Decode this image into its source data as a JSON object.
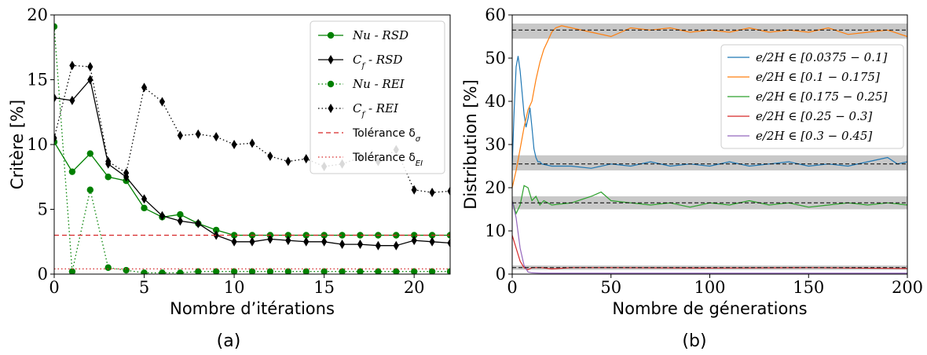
{
  "chart_data": [
    {
      "id": "a",
      "type": "line",
      "caption": "(a)",
      "xlabel": "Nombre d’itérations",
      "ylabel": "Critère [%]",
      "xlim": [
        0,
        22
      ],
      "ylim": [
        0,
        20
      ],
      "xticks": [
        0,
        5,
        10,
        15,
        20
      ],
      "yticks": [
        0,
        5,
        10,
        15,
        20
      ],
      "grid": false,
      "legend_position": "top-right",
      "series": [
        {
          "name": "Nu - RSD",
          "color": "#008000",
          "style": "solid",
          "marker": "circle",
          "x": [
            0,
            1,
            2,
            3,
            4,
            5,
            6,
            7,
            8,
            9,
            10,
            11,
            12,
            13,
            14,
            15,
            16,
            17,
            18,
            19,
            20,
            21,
            22
          ],
          "y": [
            10.2,
            7.9,
            9.3,
            7.5,
            7.2,
            5.1,
            4.4,
            4.6,
            3.9,
            3.4,
            3.0,
            3.0,
            3.0,
            3.0,
            3.0,
            3.0,
            3.0,
            3.0,
            3.0,
            3.0,
            3.0,
            3.0,
            3.0
          ]
        },
        {
          "name": "Cf - RSD",
          "color": "#000000",
          "style": "solid",
          "marker": "diamond",
          "x": [
            0,
            1,
            2,
            3,
            4,
            5,
            6,
            7,
            8,
            9,
            10,
            11,
            12,
            13,
            14,
            15,
            16,
            17,
            18,
            19,
            20,
            21,
            22
          ],
          "y": [
            13.6,
            13.4,
            15.0,
            8.5,
            7.5,
            5.8,
            4.5,
            4.1,
            3.9,
            3.0,
            2.5,
            2.5,
            2.7,
            2.6,
            2.5,
            2.5,
            2.3,
            2.3,
            2.2,
            2.2,
            2.6,
            2.5,
            2.4
          ]
        },
        {
          "name": "Nu - REI",
          "color": "#008000",
          "style": "dotted",
          "marker": "circle",
          "x": [
            0,
            1,
            2,
            3,
            4,
            5,
            6,
            7,
            8,
            9,
            10,
            11,
            12,
            13,
            14,
            15,
            16,
            17,
            18,
            19,
            20,
            21,
            22
          ],
          "y": [
            19.1,
            0.2,
            6.5,
            0.5,
            0.3,
            0.1,
            0.1,
            0.1,
            0.2,
            0.2,
            0.2,
            0.2,
            0.2,
            0.2,
            0.2,
            0.2,
            0.2,
            0.2,
            0.2,
            0.2,
            0.2,
            0.2,
            0.2
          ]
        },
        {
          "name": "Cf - REI",
          "color": "#000000",
          "style": "dotted",
          "marker": "diamond",
          "x": [
            0,
            1,
            2,
            3,
            4,
            5,
            6,
            7,
            8,
            9,
            10,
            11,
            12,
            13,
            14,
            15,
            16,
            17,
            18,
            19,
            20,
            21,
            22
          ],
          "y": [
            10.5,
            16.1,
            16.0,
            8.7,
            7.8,
            14.4,
            13.3,
            10.7,
            10.8,
            10.6,
            10.0,
            10.1,
            9.1,
            8.7,
            8.9,
            8.3,
            8.5,
            9.0,
            8.7,
            9.6,
            6.5,
            6.3,
            6.4
          ]
        },
        {
          "name": "Tolérance δσ",
          "color": "#d62728",
          "style": "dashed",
          "marker": "none",
          "x": [
            0,
            22
          ],
          "y": [
            3.0,
            3.0
          ]
        },
        {
          "name": "Tolérance δEI",
          "color": "#d62728",
          "style": "dotted",
          "marker": "none",
          "x": [
            0,
            22
          ],
          "y": [
            0.4,
            0.4
          ]
        }
      ],
      "legend": [
        {
          "prefix": "Nu",
          "sub": "",
          "suffix": " - RSD",
          "italic": true,
          "series": 0
        },
        {
          "prefix": "C",
          "sub": "f",
          "suffix": " - RSD",
          "italic": true,
          "series": 1
        },
        {
          "prefix": "Nu",
          "sub": "",
          "suffix": " - REI",
          "italic": true,
          "series": 2
        },
        {
          "prefix": "C",
          "sub": "f",
          "suffix": " - REI",
          "italic": true,
          "series": 3
        },
        {
          "prefix": "Tolérance δ",
          "sub": "σ",
          "suffix": "",
          "italic": false,
          "series": 4
        },
        {
          "prefix": "Tolérance δ",
          "sub": "EI",
          "suffix": "",
          "italic": false,
          "series": 5
        }
      ]
    },
    {
      "id": "b",
      "type": "line",
      "caption": "(b)",
      "xlabel": "Nombre de génerations",
      "ylabel": "Distribution [%]",
      "xlim": [
        0,
        200
      ],
      "ylim": [
        0,
        60
      ],
      "xticks": [
        0,
        50,
        100,
        150,
        200
      ],
      "yticks": [
        0,
        10,
        20,
        30,
        40,
        50,
        60
      ],
      "grid": false,
      "legend_position": "right",
      "bands": [
        {
          "center": 56.5,
          "low": 54.5,
          "high": 58.0
        },
        {
          "center": 25.5,
          "low": 24.0,
          "high": 27.5
        },
        {
          "center": 16.5,
          "low": 15.0,
          "high": 18.0
        },
        {
          "center": 1.5,
          "low": 1.0,
          "high": 2.0
        }
      ],
      "series": [
        {
          "name": "e/2H ∈ [0.0375 − 0.1]",
          "color": "#1f77b4",
          "x": [
            0,
            1,
            2,
            3,
            4,
            5,
            6,
            7,
            8,
            9,
            10,
            11,
            12,
            13,
            14,
            15,
            20,
            30,
            40,
            50,
            60,
            70,
            80,
            90,
            100,
            110,
            120,
            130,
            140,
            150,
            160,
            170,
            180,
            190,
            195,
            200
          ],
          "y": [
            25,
            38,
            48,
            50.5,
            47,
            42,
            37,
            34,
            36,
            38.5,
            34,
            29,
            27,
            26,
            26,
            25.5,
            25,
            25,
            24.5,
            25.5,
            25,
            26,
            25,
            25.5,
            25,
            26,
            25,
            25.5,
            26,
            25,
            25.5,
            25,
            26,
            27,
            25.5,
            26
          ]
        },
        {
          "name": "e/2H ∈ [0.1 − 0.175]",
          "color": "#ff7f0e",
          "x": [
            0,
            2,
            4,
            6,
            8,
            10,
            12,
            14,
            16,
            18,
            20,
            22,
            25,
            30,
            40,
            50,
            60,
            70,
            80,
            90,
            100,
            110,
            120,
            130,
            140,
            150,
            160,
            170,
            180,
            190,
            200
          ],
          "y": [
            20,
            24,
            29,
            34,
            38,
            40,
            45,
            49,
            52,
            54,
            56,
            57,
            57.5,
            57,
            56,
            55,
            57,
            56.5,
            57,
            56,
            56.5,
            56,
            57,
            56,
            56.5,
            56,
            57,
            55.5,
            56,
            56.5,
            55
          ]
        },
        {
          "name": "e/2H ∈ [0.175 − 0.25]",
          "color": "#2ca02c",
          "x": [
            0,
            2,
            4,
            6,
            8,
            10,
            12,
            14,
            16,
            20,
            30,
            40,
            45,
            50,
            60,
            70,
            80,
            90,
            100,
            110,
            120,
            130,
            140,
            150,
            160,
            170,
            180,
            190,
            200
          ],
          "y": [
            17,
            14,
            16,
            20.5,
            20,
            17,
            18,
            16,
            17,
            16,
            16.5,
            18,
            19,
            17,
            16.5,
            16,
            16.5,
            15.5,
            16.5,
            16,
            17,
            16,
            16.5,
            15.5,
            16,
            16.5,
            16,
            16.5,
            16
          ]
        },
        {
          "name": "e/2H ∈ [0.25 − 0.3]",
          "color": "#d62728",
          "x": [
            0,
            2,
            4,
            6,
            8,
            10,
            15,
            20,
            30,
            50,
            100,
            150,
            200
          ],
          "y": [
            9,
            6,
            3,
            1.5,
            1,
            1.5,
            1.5,
            1.2,
            1.5,
            1.5,
            1.4,
            1.5,
            1.3
          ]
        },
        {
          "name": "e/2H ∈ [0.3 − 0.45]",
          "color": "#9467bd",
          "x": [
            0,
            2,
            4,
            6,
            8,
            10,
            15,
            20,
            50,
            100,
            150,
            200
          ],
          "y": [
            17,
            13,
            6,
            2,
            0.5,
            0.3,
            0.2,
            0.2,
            0.2,
            0.2,
            0.2,
            0.2
          ]
        }
      ],
      "legend": [
        {
          "prefix": "e/2H ∈ [0.0375 − 0.1]",
          "series": 0
        },
        {
          "prefix": "e/2H ∈ [0.1 − 0.175]",
          "series": 1
        },
        {
          "prefix": "e/2H ∈ [0.175 − 0.25]",
          "series": 2
        },
        {
          "prefix": "e/2H ∈ [0.25 − 0.3]",
          "series": 3
        },
        {
          "prefix": "e/2H ∈ [0.3 − 0.45]",
          "series": 4
        }
      ]
    }
  ]
}
